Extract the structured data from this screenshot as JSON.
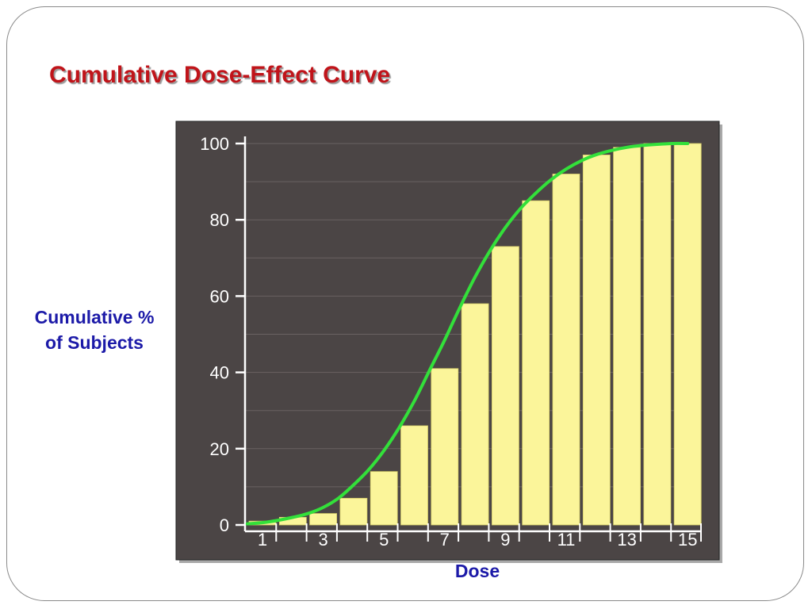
{
  "slide": {
    "title": "Cumulative Dose-Effect Curve"
  },
  "colors": {
    "title": "#c0141a",
    "axis_title": "#1c1aa8",
    "plot_background": "#4b4545",
    "bar_fill": "#fbf59a",
    "curve": "#33e03a"
  },
  "chart_data": {
    "type": "bar",
    "xlabel": "Dose",
    "ylabel": "Cumulative %\nof Subjects",
    "categories": [
      1,
      2,
      3,
      4,
      5,
      6,
      7,
      8,
      9,
      10,
      11,
      12,
      13,
      14,
      15
    ],
    "x_tick_labels": [
      "1",
      "3",
      "5",
      "7",
      "9",
      "11",
      "13",
      "15"
    ],
    "values": [
      1,
      2,
      3,
      7,
      14,
      26,
      41,
      58,
      73,
      85,
      92,
      97,
      99,
      100,
      100
    ],
    "ylim": [
      0,
      100
    ],
    "y_tick_labels": [
      "0",
      "20",
      "40",
      "60",
      "80",
      "100"
    ],
    "grid": true,
    "curve": {
      "type": "line",
      "x": [
        0.5,
        1,
        1.5,
        2,
        2.5,
        3,
        3.5,
        4,
        4.5,
        5,
        5.5,
        6,
        6.5,
        7,
        7.5,
        8,
        8.5,
        9,
        9.5,
        10,
        10.5,
        11,
        11.5,
        12,
        12.5,
        13,
        13.5,
        14,
        14.5,
        15
      ],
      "y": [
        0.3,
        0.6,
        1.2,
        2.0,
        3.0,
        4.6,
        7.0,
        10.5,
        14.5,
        19.5,
        25.5,
        32.5,
        40.5,
        48.5,
        57.0,
        65.0,
        72.0,
        78.0,
        83.0,
        87.0,
        90.5,
        93.3,
        95.5,
        97.1,
        98.2,
        99.0,
        99.5,
        99.8,
        100,
        100
      ]
    }
  }
}
